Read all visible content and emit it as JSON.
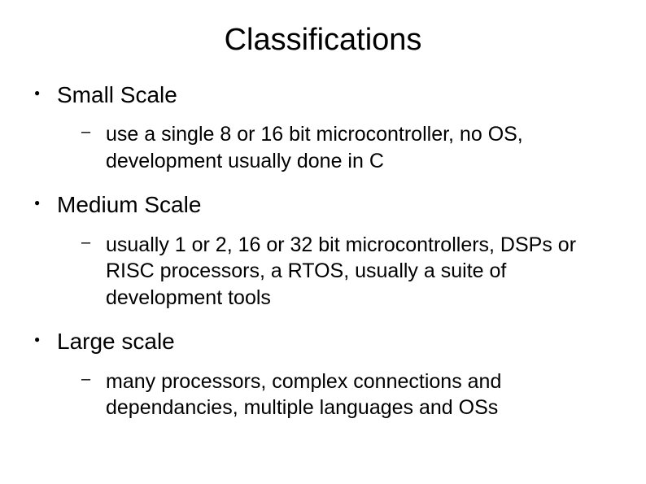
{
  "title": "Classifications",
  "items": [
    {
      "heading": "Small Scale",
      "sub": "use a single 8 or 16 bit microcontroller, no OS, development usually done in C"
    },
    {
      "heading": "Medium Scale",
      "sub": "usually 1 or 2, 16 or 32 bit microcontrollers, DSPs or RISC processors, a RTOS, usually a suite of development tools"
    },
    {
      "heading": "Large scale",
      "sub": "many processors, complex connections and dependancies, multiple languages and OSs"
    }
  ],
  "style": {
    "background_color": "#ffffff",
    "text_color": "#000000",
    "title_fontsize": 38,
    "heading_fontsize": 28,
    "sub_fontsize": 25,
    "font_family": "Arial"
  }
}
